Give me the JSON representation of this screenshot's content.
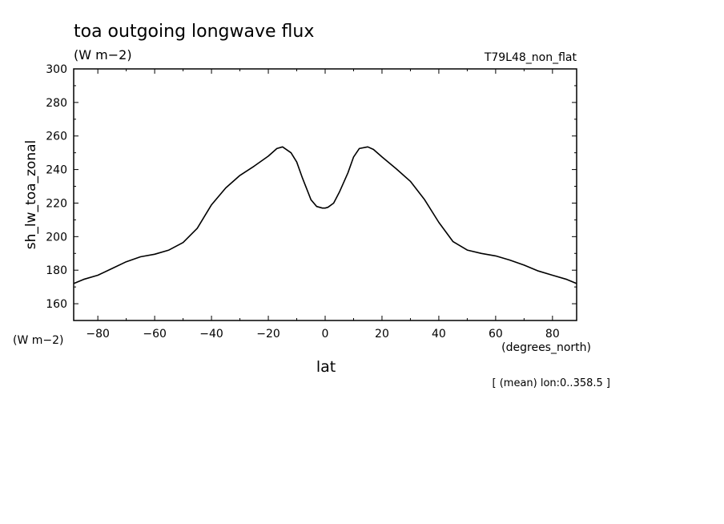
{
  "chart_data": {
    "type": "line",
    "title": "toa outgoing longwave flux",
    "units": "(W m−2)",
    "run_label": "T79L48_non_flat",
    "ylabel": "sh_lw_toa_zonal",
    "y_units": "(W m−2)",
    "xlabel": "lat",
    "x_units": "(degrees_north)",
    "footnote": "[ (mean) lon:0..358.5 ]",
    "xlim": [
      -88.5,
      88.5
    ],
    "ylim": [
      150,
      300
    ],
    "x_ticks": [
      -80,
      -60,
      -40,
      -20,
      0,
      20,
      40,
      60,
      80
    ],
    "x_tick_labels": [
      "−80",
      "−60",
      "−40",
      "−20",
      "0",
      "20",
      "40",
      "60",
      "80"
    ],
    "y_ticks": [
      160,
      180,
      200,
      220,
      240,
      260,
      280,
      300
    ],
    "y_tick_labels": [
      "160",
      "180",
      "200",
      "220",
      "240",
      "260",
      "280",
      "300"
    ],
    "grid": false,
    "series": [
      {
        "x": [
          -88.5,
          -85,
          -80,
          -75,
          -70,
          -65,
          -60,
          -55,
          -50,
          -45,
          -40,
          -35,
          -30,
          -25,
          -20,
          -17,
          -15,
          -12,
          -10,
          -8,
          -5,
          -3,
          -1,
          0,
          1,
          3,
          5,
          8,
          10,
          12,
          15,
          17,
          20,
          25,
          30,
          35,
          40,
          45,
          50,
          55,
          60,
          65,
          70,
          75,
          80,
          85,
          88.5
        ],
        "y": [
          172,
          174.5,
          177,
          181,
          185,
          188,
          189.5,
          192,
          196.5,
          205,
          219,
          229,
          236.5,
          242,
          248,
          252.5,
          253.5,
          250,
          244.5,
          235,
          222,
          218,
          217,
          217,
          217.5,
          220,
          226.5,
          238,
          247.5,
          252.5,
          253.5,
          252,
          247.5,
          240.5,
          233,
          222,
          208.5,
          197,
          192,
          190,
          188.5,
          186,
          183,
          179.5,
          177,
          174.5,
          172
        ]
      }
    ]
  }
}
